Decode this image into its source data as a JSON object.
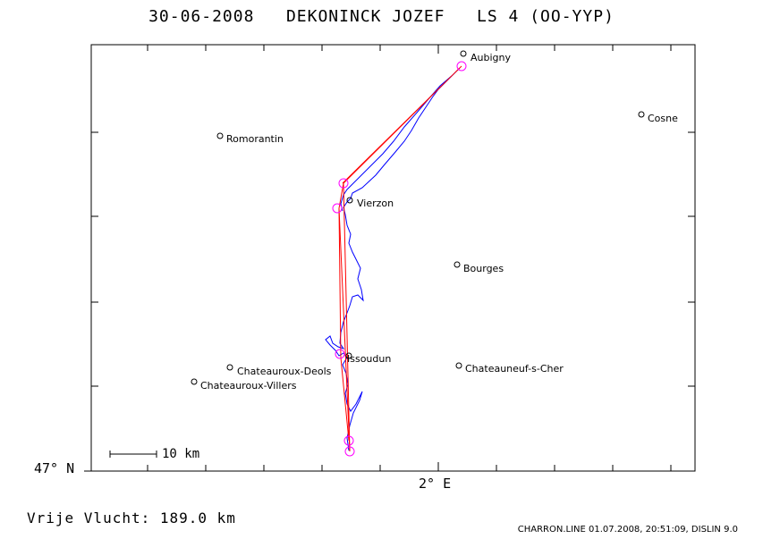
{
  "header": {
    "title": "30-06-2008   DEKONINCK JOZEF   LS 4 (OO-YYP)"
  },
  "axes": {
    "lat_label": "47° N",
    "lon_label": "2° E"
  },
  "scale_bar": {
    "label": "10 km"
  },
  "towns": [
    {
      "name": "Aubigny"
    },
    {
      "name": "Cosne"
    },
    {
      "name": "Romorantin"
    },
    {
      "name": "Vierzon"
    },
    {
      "name": "Bourges"
    },
    {
      "name": "Issoudun"
    },
    {
      "name": "Chateauroux-Deols"
    },
    {
      "name": "Chateauneuf-s-Cher"
    },
    {
      "name": "Chateauroux-Villers"
    }
  ],
  "footer": {
    "distance": "Vrije Vlucht:  189.0 km",
    "info": "CHARRON.LINE 01.07.2008, 20:51:09, DISLIN 9.0"
  },
  "colors": {
    "track": "#0000ff",
    "task": "#ff0000",
    "turnpoint": "#ff00ff",
    "frame": "#000000"
  }
}
